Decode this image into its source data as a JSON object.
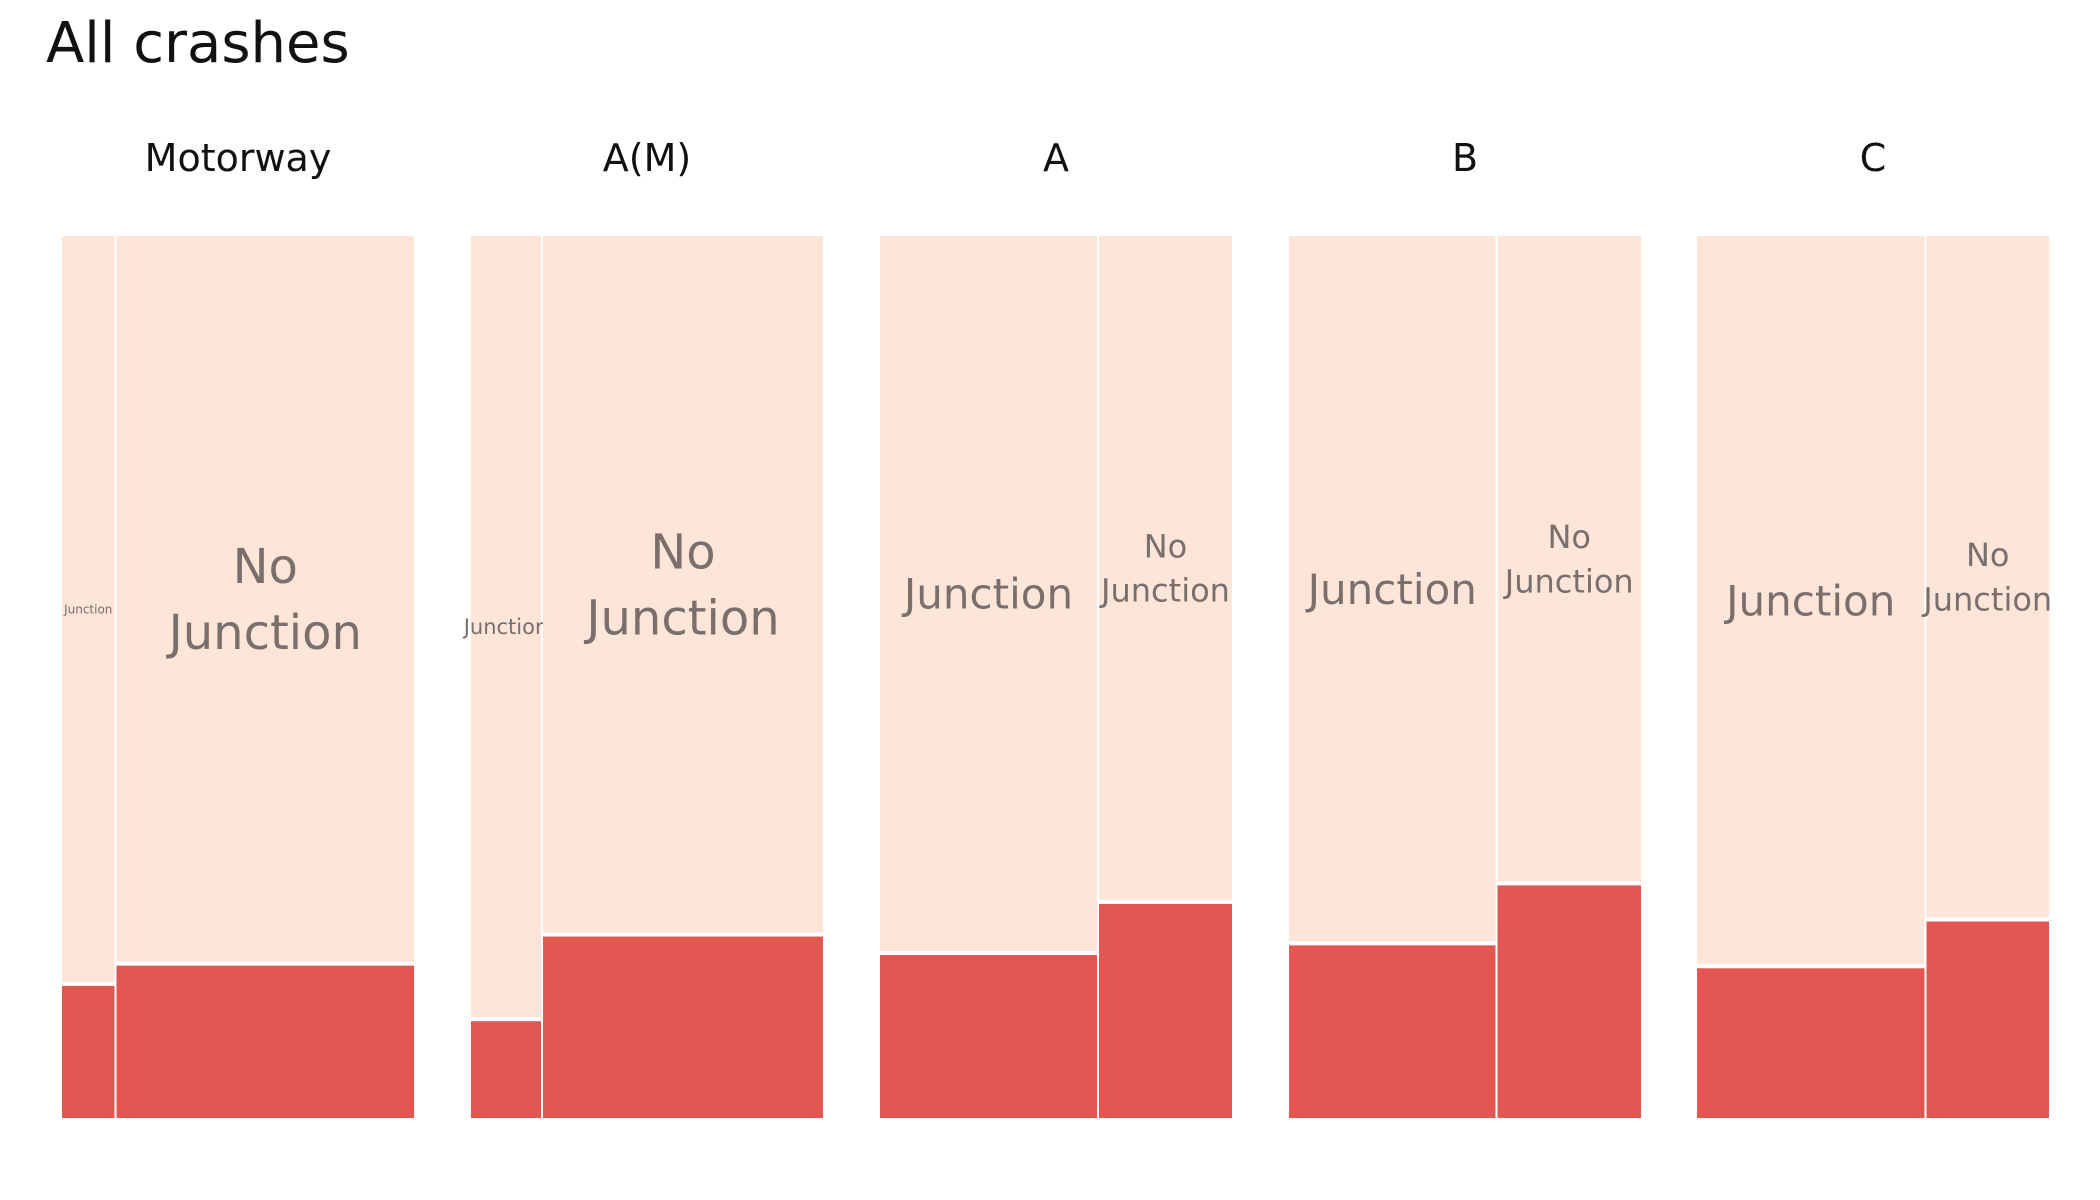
{
  "chart_data": {
    "type": "mosaic",
    "title": "All crashes",
    "colors": {
      "light": "#fde5da",
      "dark": "#e35651",
      "label": "#7a6f6a"
    },
    "panels": [
      {
        "name": "Motorway",
        "columns": [
          {
            "label": "Junction",
            "share": 0.15,
            "lower_fraction": 0.152
          },
          {
            "label": "No Junction",
            "share": 0.85,
            "lower_fraction": 0.175
          }
        ]
      },
      {
        "name": "A(M)",
        "columns": [
          {
            "label": "Junction",
            "share": 0.2,
            "lower_fraction": 0.112
          },
          {
            "label": "No Junction",
            "share": 0.8,
            "lower_fraction": 0.208
          }
        ]
      },
      {
        "name": "A",
        "columns": [
          {
            "label": "Junction",
            "share": 0.62,
            "lower_fraction": 0.187
          },
          {
            "label": "No Junction",
            "share": 0.38,
            "lower_fraction": 0.245
          }
        ]
      },
      {
        "name": "B",
        "columns": [
          {
            "label": "Junction",
            "share": 0.59,
            "lower_fraction": 0.198
          },
          {
            "label": "No Junction",
            "share": 0.41,
            "lower_fraction": 0.266
          }
        ]
      },
      {
        "name": "C",
        "columns": [
          {
            "label": "Junction",
            "share": 0.65,
            "lower_fraction": 0.172
          },
          {
            "label": "No Junction",
            "share": 0.35,
            "lower_fraction": 0.225
          }
        ]
      }
    ]
  }
}
